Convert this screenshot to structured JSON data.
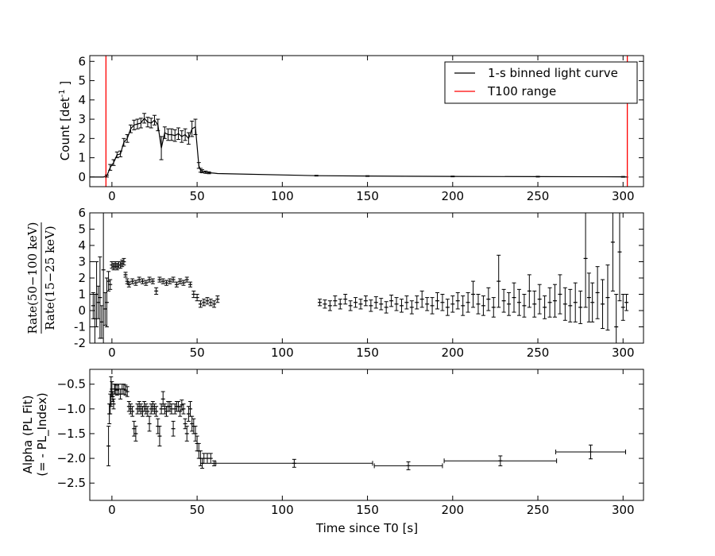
{
  "chart_data": [
    {
      "type": "line",
      "panel": "light-curve",
      "ylabel": "Count [det",
      "ylabel_sup": "-1",
      "ylabel_end": " ]",
      "ylim": [
        -0.5,
        6.3
      ],
      "yticks": [
        0,
        1,
        2,
        3,
        4,
        5,
        6
      ],
      "xlim": [
        -13,
        312
      ],
      "xticks": [
        0,
        50,
        100,
        150,
        200,
        250,
        300
      ],
      "legend": {
        "placement": "top-right",
        "entries": [
          {
            "label": "1-s binned light curve",
            "color": "#000000"
          },
          {
            "label": "T100 range",
            "color": "#ff0000"
          }
        ]
      },
      "t100_range": [
        -3.5,
        302.5
      ],
      "series": [
        {
          "color": "#000000",
          "x": [
            -13,
            -10,
            -7,
            -5,
            -3,
            -1,
            1,
            3,
            5,
            7,
            9,
            11,
            13,
            15,
            17,
            19,
            21,
            23,
            25,
            27,
            29,
            31,
            33,
            35,
            37,
            39,
            41,
            43,
            45,
            47,
            49,
            51,
            52,
            53,
            55,
            57,
            60,
            62,
            120,
            150,
            200,
            250,
            300,
            303
          ],
          "y": [
            0,
            0,
            0,
            0,
            0.05,
            0.5,
            0.75,
            1.15,
            1.2,
            1.8,
            2.0,
            2.5,
            2.7,
            2.75,
            2.8,
            3.05,
            2.85,
            2.8,
            2.95,
            2.7,
            1.5,
            2.3,
            2.2,
            2.2,
            2.15,
            2.25,
            2.1,
            2.2,
            2.0,
            2.5,
            2.6,
            0.6,
            0.35,
            0.3,
            0.25,
            0.22,
            0.2,
            0.18,
            0.07,
            0.05,
            0.03,
            0.02,
            0.01,
            0.0
          ],
          "err": [
            0,
            0,
            0,
            0,
            0.05,
            0.15,
            0.15,
            0.15,
            0.15,
            0.2,
            0.2,
            0.2,
            0.25,
            0.25,
            0.25,
            0.25,
            0.25,
            0.25,
            0.25,
            0.3,
            0.6,
            0.3,
            0.3,
            0.3,
            0.3,
            0.3,
            0.3,
            0.3,
            0.3,
            0.4,
            0.4,
            0.15,
            0.1,
            0.08,
            0.06,
            0.05,
            0,
            0,
            0.02,
            0.02,
            0.02,
            0.02,
            0.02,
            0
          ]
        }
      ]
    },
    {
      "type": "scatter",
      "panel": "hardness-ratio",
      "ylabel_num": "Rate(50−100 keV)",
      "ylabel_den": "Rate(15−25 keV)",
      "ylim": [
        -2,
        6
      ],
      "yticks": [
        -2,
        -1,
        0,
        1,
        2,
        3,
        4,
        5,
        6
      ],
      "xlim": [
        -13,
        312
      ],
      "xticks": [
        0,
        50,
        100,
        150,
        200,
        250,
        300
      ],
      "series": [
        {
          "color": "#000000",
          "x": [
            -11,
            -10,
            -9,
            -8,
            -7,
            -6,
            -5,
            -4,
            -3,
            -2,
            -1,
            0,
            1,
            2,
            3,
            4,
            5,
            6,
            7,
            8,
            9,
            10,
            12,
            14,
            16,
            18,
            20,
            22,
            24,
            26,
            28,
            30,
            32,
            34,
            36,
            38,
            40,
            42,
            44,
            46,
            48,
            50,
            52,
            54,
            56,
            58,
            60,
            62,
            122,
            125,
            128,
            131,
            134,
            137,
            140,
            143,
            146,
            149,
            152,
            155,
            158,
            161,
            164,
            167,
            170,
            173,
            176,
            179,
            182,
            185,
            188,
            191,
            194,
            197,
            200,
            203,
            206,
            209,
            212,
            215,
            218,
            221,
            224,
            227,
            230,
            233,
            236,
            239,
            242,
            245,
            248,
            251,
            254,
            257,
            260,
            263,
            266,
            269,
            272,
            275,
            278,
            280,
            282,
            285,
            288,
            291,
            294,
            296,
            298,
            300,
            302
          ],
          "y": [
            0.3,
            -0.5,
            1.0,
            0.5,
            0.8,
            -0.7,
            2.5,
            0.1,
            0.5,
            1.8,
            1.6,
            2.8,
            2.7,
            2.8,
            2.7,
            2.8,
            2.8,
            2.9,
            3.0,
            2.2,
            1.8,
            1.6,
            1.8,
            1.7,
            1.9,
            1.8,
            1.7,
            1.9,
            1.8,
            1.2,
            1.9,
            1.8,
            1.7,
            1.8,
            1.9,
            1.6,
            1.8,
            1.7,
            1.9,
            1.6,
            1.0,
            0.8,
            0.4,
            0.5,
            0.6,
            0.5,
            0.4,
            0.7,
            0.5,
            0.4,
            0.3,
            0.6,
            0.4,
            0.7,
            0.3,
            0.5,
            0.4,
            0.6,
            0.3,
            0.5,
            0.4,
            0.2,
            0.6,
            0.4,
            0.3,
            0.5,
            0.2,
            0.5,
            0.7,
            0.4,
            0.3,
            0.6,
            0.5,
            0.2,
            0.4,
            0.6,
            0.3,
            0.5,
            1.0,
            0.4,
            0.3,
            0.7,
            0.2,
            1.8,
            0.6,
            0.4,
            0.8,
            0.5,
            0.3,
            1.2,
            0.4,
            0.7,
            0.2,
            0.5,
            0.6,
            1.0,
            0.4,
            0.3,
            0.5,
            0.2,
            3.2,
            0.8,
            0.5,
            1.1,
            0.4,
            0.8,
            4.2,
            -1.0,
            3.6,
            0.2,
            0.5
          ],
          "err": [
            0.8,
            1.5,
            2.0,
            1.0,
            2.5,
            1.0,
            6.0,
            1.0,
            1.5,
            0.6,
            0.3,
            0.2,
            0.2,
            0.2,
            0.2,
            0.2,
            0.2,
            0.2,
            0.2,
            0.15,
            0.15,
            0.15,
            0.15,
            0.15,
            0.15,
            0.15,
            0.15,
            0.15,
            0.15,
            0.2,
            0.15,
            0.15,
            0.15,
            0.15,
            0.15,
            0.15,
            0.15,
            0.15,
            0.15,
            0.15,
            0.2,
            0.2,
            0.2,
            0.2,
            0.2,
            0.2,
            0.2,
            0.2,
            0.2,
            0.25,
            0.3,
            0.3,
            0.3,
            0.3,
            0.3,
            0.3,
            0.3,
            0.3,
            0.35,
            0.35,
            0.35,
            0.35,
            0.35,
            0.4,
            0.4,
            0.4,
            0.4,
            0.4,
            0.5,
            0.4,
            0.5,
            0.5,
            0.5,
            0.5,
            0.5,
            0.5,
            0.6,
            0.6,
            0.8,
            0.6,
            0.6,
            0.7,
            0.6,
            1.6,
            0.7,
            0.7,
            0.9,
            0.8,
            0.7,
            1.0,
            0.8,
            0.9,
            0.7,
            0.9,
            1.0,
            1.2,
            1.0,
            1.0,
            1.2,
            1.0,
            3.0,
            1.5,
            1.2,
            1.6,
            1.5,
            2.0,
            3.0,
            2.0,
            3.0,
            0.8,
            0.5
          ]
        }
      ]
    },
    {
      "type": "scatter",
      "panel": "pl-alpha",
      "ylabel_line1": "Alpha (PL Fit)",
      "ylabel_line2": "(= - PL_Index)",
      "xlabel": "Time since T0 [s]",
      "ylim": [
        -2.85,
        -0.2
      ],
      "yticks": [
        -2.5,
        -2.0,
        -1.5,
        -1.0,
        -0.5
      ],
      "ytick_labels": [
        "−2.5",
        "−2.0",
        "−1.5",
        "−1.0",
        "−0.5"
      ],
      "xlim": [
        -13,
        312
      ],
      "xticks": [
        0,
        50,
        100,
        150,
        200,
        250,
        300
      ],
      "series": [
        {
          "color": "#000000",
          "x": [
            -2,
            -1.5,
            -1,
            -0.5,
            0,
            0.5,
            1,
            1.5,
            2,
            3,
            4,
            5,
            6,
            7,
            8,
            9,
            10,
            11,
            12,
            13,
            14,
            15,
            16,
            17,
            18,
            19,
            20,
            21,
            22,
            23,
            24,
            25,
            26,
            27,
            28,
            29,
            30,
            31,
            32,
            33,
            34,
            35,
            36,
            37,
            38,
            39,
            40,
            41,
            42,
            43,
            44,
            45,
            46,
            47,
            48,
            49,
            50,
            51,
            52,
            53,
            54,
            56,
            58,
            60,
            107,
            174,
            228,
            281
          ],
          "xerr": [
            0,
            0,
            0,
            0,
            0,
            0,
            0,
            0,
            0,
            0,
            0,
            0,
            0,
            0,
            0,
            0,
            0,
            0,
            0,
            0,
            0,
            0,
            0,
            0,
            0,
            0,
            0,
            0,
            0,
            0,
            0,
            0,
            0,
            0,
            0,
            0,
            0,
            0,
            0,
            0,
            0,
            0,
            0,
            0,
            0,
            0,
            0,
            0,
            0,
            0,
            0,
            0,
            0,
            0,
            0,
            0,
            0,
            0,
            0,
            0,
            0,
            0,
            0,
            0,
            46,
            20,
            33,
            20.5
          ],
          "y": [
            -1.75,
            -1.1,
            -0.9,
            -0.65,
            -0.6,
            -0.75,
            -0.9,
            -0.6,
            -0.6,
            -0.62,
            -0.6,
            -0.7,
            -0.6,
            -0.6,
            -0.62,
            -0.65,
            -0.95,
            -1.0,
            -1.05,
            -1.4,
            -1.5,
            -1.0,
            -0.95,
            -1.0,
            -1.05,
            -0.95,
            -1.0,
            -1.05,
            -1.3,
            -1.0,
            -0.95,
            -1.0,
            -1.05,
            -1.35,
            -1.55,
            -1.0,
            -0.8,
            -1.0,
            -1.05,
            -0.95,
            -0.95,
            -1.0,
            -1.4,
            -1.0,
            -0.95,
            -0.95,
            -1.05,
            -0.92,
            -1.0,
            -1.3,
            -1.5,
            -1.1,
            -1.0,
            -1.3,
            -1.35,
            -1.5,
            -1.7,
            -1.85,
            -2.0,
            -2.1,
            -2.0,
            -2.0,
            -2.0,
            -2.1,
            -2.1,
            -2.15,
            -2.05,
            -1.87
          ],
          "err": [
            0.4,
            0.2,
            0.2,
            0.3,
            0.15,
            0.1,
            0.1,
            0.1,
            0.1,
            0.1,
            0.1,
            0.1,
            0.1,
            0.1,
            0.1,
            0.1,
            0.1,
            0.1,
            0.1,
            0.15,
            0.15,
            0.1,
            0.1,
            0.1,
            0.1,
            0.1,
            0.1,
            0.1,
            0.15,
            0.1,
            0.1,
            0.1,
            0.1,
            0.15,
            0.2,
            0.1,
            0.15,
            0.1,
            0.1,
            0.1,
            0.1,
            0.1,
            0.15,
            0.1,
            0.1,
            0.1,
            0.1,
            0.1,
            0.1,
            0.1,
            0.15,
            0.15,
            0.15,
            0.15,
            0.15,
            0.15,
            0.15,
            0.15,
            0.15,
            0.1,
            0.1,
            0.1,
            0.1,
            0.05,
            0.08,
            0.08,
            0.1,
            0.14
          ]
        }
      ]
    }
  ]
}
